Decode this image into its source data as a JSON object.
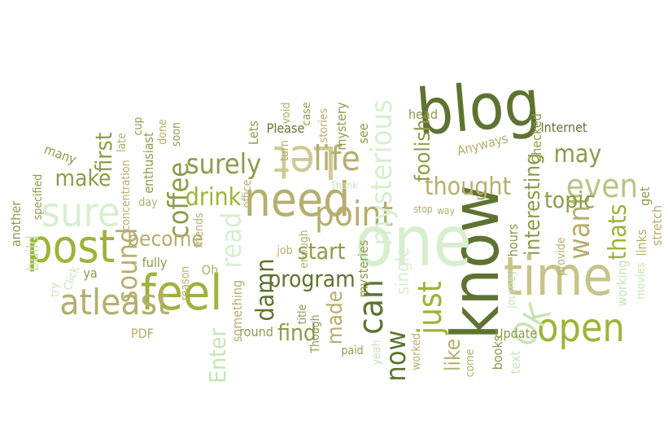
{
  "palette": {
    "dark_olive": "#5e7331",
    "olive": "#8f9a4c",
    "khaki": "#b5ae6e",
    "sand": "#cfc996",
    "yellow_green": "#9fb23b",
    "pale_green": "#c7e4b6",
    "mint": "#d8efcf",
    "background": "#ffffff"
  },
  "words": [
    "blog",
    "know",
    "one",
    "need",
    "time",
    "feel",
    "post",
    "Let",
    "life",
    "open",
    "sure",
    "point",
    "mysterious",
    "just",
    "atleast",
    "can",
    "surely",
    "coffee",
    "sound",
    "drink",
    "read",
    "damn",
    "program",
    "first",
    "make",
    "become",
    "even",
    "want",
    "thats",
    "interesting",
    "thought",
    "foolish",
    "topic",
    "may",
    "now",
    "like",
    "OK",
    "start",
    "find",
    "made",
    "round",
    "Enter",
    "fully",
    "Oh",
    "something",
    "title",
    "Though",
    "paid",
    "worked",
    "come",
    "single",
    "mysteries",
    "job",
    "enough",
    "books",
    "Update",
    "text",
    "hours",
    "journey",
    "provide",
    "working",
    "movies",
    "stretch",
    "links",
    "get",
    "head",
    "Internet",
    "Checked",
    "Anyways",
    "see",
    "stories",
    "mystery",
    "Please",
    "case",
    "void",
    "turn",
    "Lets",
    "office",
    "friends",
    "reason",
    "ya",
    "Click",
    "try",
    "PDF",
    "build",
    "another",
    "many",
    "specified",
    "late",
    "enthusiast",
    "cup",
    "done",
    "soon",
    "concentration",
    "day",
    "stop",
    "way",
    "Thank",
    "yeah",
    "feel"
  ]
}
